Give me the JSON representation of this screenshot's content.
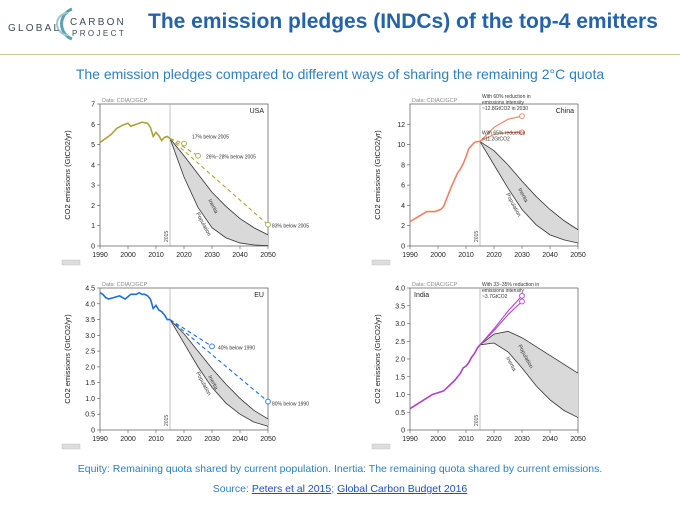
{
  "header": {
    "logo_text": {
      "global": "GLOBAL",
      "carbon": "CARBON",
      "project": "PROJECT"
    },
    "title": "The emission pledges (INDCs) of the top-4 emitters",
    "subtitle": "The emission pledges compared to different ways of sharing the remaining 2°C quota"
  },
  "footer": {
    "line1": "Equity: Remaining quota shared by current population. Inertia: The remaining quota shared by current emissions.",
    "source_prefix": "Source: ",
    "link1": "Peters et al 2015",
    "separator": "; ",
    "link2": "Global Carbon Budget 2016"
  },
  "colors": {
    "title": "#2563a8",
    "usa": "#a8a43c",
    "china": "#f08060",
    "eu": "#1f6fd6",
    "india": "#b040c8",
    "band": "#d9d9d9"
  },
  "chart_data": [
    {
      "id": "usa",
      "type": "line",
      "region": "USA",
      "source": "Data: CDIAC/GCP",
      "ylabel": "CO2 emissions (GtCO2/yr)",
      "xlim": [
        1990,
        2050
      ],
      "ylim": [
        0,
        7
      ],
      "xticks": [
        "1990",
        "2000",
        "2010",
        "2020",
        "2030",
        "2040",
        "2050"
      ],
      "yticks": [
        "0",
        "1",
        "2",
        "3",
        "4",
        "5",
        "6",
        "7"
      ],
      "marker_year": "2015",
      "historical": {
        "x": [
          1990,
          1992,
          1994,
          1996,
          1998,
          2000,
          2001,
          2003,
          2005,
          2007,
          2008,
          2009,
          2010,
          2011,
          2012,
          2013,
          2014,
          2015
        ],
        "y": [
          5.1,
          5.3,
          5.5,
          5.8,
          5.95,
          6.05,
          5.9,
          6.0,
          6.1,
          6.05,
          5.85,
          5.4,
          5.6,
          5.45,
          5.2,
          5.35,
          5.4,
          5.3
        ]
      },
      "pledges": [
        {
          "label": "17% below 2005",
          "x": [
            2015,
            2020
          ],
          "y": [
            5.3,
            5.05
          ]
        },
        {
          "label": "26%−28% below 2005",
          "x": [
            2015,
            2025
          ],
          "y": [
            5.3,
            4.45
          ]
        },
        {
          "label": "83% below 2005",
          "x": [
            2015,
            2050
          ],
          "y": [
            5.3,
            1.05
          ]
        }
      ],
      "band": {
        "x": [
          2015,
          2020,
          2025,
          2030,
          2035,
          2040,
          2045,
          2050
        ],
        "upper": [
          5.3,
          4.45,
          3.55,
          2.65,
          1.95,
          1.35,
          0.9,
          0.55
        ],
        "lower": [
          5.3,
          3.4,
          1.9,
          0.9,
          0.4,
          0.15,
          0.05,
          0.02
        ]
      },
      "band_labels": [
        "Inertia",
        "Population"
      ]
    },
    {
      "id": "china",
      "type": "line",
      "region": "China",
      "source": "Data: CDIAC/GCP",
      "ylabel": "CO2 emissions (GtCO2/yr)",
      "xlim": [
        1990,
        2050
      ],
      "ylim": [
        0,
        14
      ],
      "xticks": [
        "1990",
        "2000",
        "2010",
        "2020",
        "2030",
        "2040",
        "2050"
      ],
      "yticks": [
        "0",
        "2",
        "4",
        "6",
        "8",
        "10",
        "12"
      ],
      "marker_year": "2015",
      "historical": {
        "x": [
          1990,
          1993,
          1996,
          1999,
          2001,
          2002,
          2003,
          2004,
          2005,
          2006,
          2007,
          2008,
          2009,
          2010,
          2011,
          2012,
          2013,
          2014,
          2015
        ],
        "y": [
          2.4,
          2.9,
          3.4,
          3.4,
          3.6,
          3.9,
          4.6,
          5.3,
          6.0,
          6.6,
          7.2,
          7.6,
          8.1,
          8.8,
          9.6,
          9.9,
          10.2,
          10.3,
          10.3
        ]
      },
      "pledges": [
        {
          "label": "With 60% reduction in emissions intensity ~12.8GtCO2 in 2030",
          "x": [
            2015,
            2020,
            2025,
            2030
          ],
          "y": [
            10.3,
            11.7,
            12.5,
            12.8
          ]
        },
        {
          "label": "With 65% reduction ~11.2GtCO2",
          "x": [
            2015,
            2020,
            2025,
            2030
          ],
          "y": [
            10.3,
            11.0,
            11.2,
            11.2
          ]
        }
      ],
      "band": {
        "x": [
          2015,
          2020,
          2025,
          2030,
          2035,
          2040,
          2045,
          2050
        ],
        "upper": [
          10.3,
          9.4,
          8.0,
          6.4,
          4.9,
          3.6,
          2.5,
          1.6
        ],
        "lower": [
          10.3,
          8.0,
          5.7,
          3.6,
          2.1,
          1.1,
          0.6,
          0.3
        ]
      },
      "band_labels": [
        "Inertia",
        "Population"
      ]
    },
    {
      "id": "eu",
      "type": "line",
      "region": "EU",
      "source": "Data: CDIAC/GCP",
      "ylabel": "CO2 emissions (GtCO2/yr)",
      "xlim": [
        1990,
        2050
      ],
      "ylim": [
        0,
        4.5
      ],
      "xticks": [
        "1990",
        "2000",
        "2010",
        "2020",
        "2030",
        "2040",
        "2050"
      ],
      "yticks": [
        "0",
        "0.5",
        "1.0",
        "1.5",
        "2.0",
        "2.5",
        "3.0",
        "3.5",
        "4.0",
        "4.5"
      ],
      "marker_year": "2015",
      "historical": {
        "x": [
          1990,
          1991,
          1992,
          1993,
          1995,
          1997,
          1999,
          2001,
          2003,
          2004,
          2005,
          2006,
          2007,
          2008,
          2009,
          2010,
          2011,
          2012,
          2013,
          2014,
          2015
        ],
        "y": [
          4.35,
          4.3,
          4.2,
          4.15,
          4.2,
          4.25,
          4.15,
          4.3,
          4.3,
          4.35,
          4.3,
          4.3,
          4.25,
          4.15,
          3.85,
          3.95,
          3.8,
          3.75,
          3.65,
          3.5,
          3.5
        ]
      },
      "pledges": [
        {
          "label": "40% below 1990",
          "x": [
            2015,
            2030
          ],
          "y": [
            3.5,
            2.65
          ]
        },
        {
          "label": "80% below 1990",
          "x": [
            2015,
            2050
          ],
          "y": [
            3.5,
            0.9
          ]
        }
      ],
      "band": {
        "x": [
          2015,
          2020,
          2025,
          2030,
          2035,
          2040,
          2045,
          2050
        ],
        "upper": [
          3.5,
          3.05,
          2.5,
          1.95,
          1.45,
          1.0,
          0.62,
          0.35
        ],
        "lower": [
          3.5,
          2.75,
          2.0,
          1.35,
          0.85,
          0.5,
          0.25,
          0.12
        ]
      },
      "band_labels": [
        "Inertia",
        "Population"
      ]
    },
    {
      "id": "india",
      "type": "line",
      "region": "India",
      "source": "Data: CDIAC/GCP",
      "ylabel": "CO2 emissions (GtCO2/yr)",
      "xlim": [
        1990,
        2050
      ],
      "ylim": [
        0,
        4
      ],
      "xticks": [
        "1990",
        "2000",
        "2010",
        "2020",
        "2030",
        "2040",
        "2050"
      ],
      "yticks": [
        "0",
        "0.5",
        "1.0",
        "1.5",
        "2.0",
        "2.5",
        "3.0",
        "3.5",
        "4.0"
      ],
      "marker_year": "2015",
      "historical": {
        "x": [
          1990,
          1992,
          1994,
          1996,
          1998,
          2000,
          2002,
          2004,
          2006,
          2008,
          2009,
          2010,
          2011,
          2012,
          2013,
          2014,
          2015
        ],
        "y": [
          0.6,
          0.7,
          0.8,
          0.9,
          1.0,
          1.05,
          1.1,
          1.25,
          1.4,
          1.6,
          1.75,
          1.8,
          1.9,
          2.05,
          2.15,
          2.3,
          2.4
        ]
      },
      "pledges": [
        {
          "label": "With 33−35% reduction in emissions intensity ~3.7GtCO2",
          "x": [
            2015,
            2020,
            2025,
            2030
          ],
          "y": [
            2.4,
            2.85,
            3.35,
            3.78
          ]
        },
        {
          "label": "",
          "x": [
            2015,
            2020,
            2025,
            2030
          ],
          "y": [
            2.4,
            2.8,
            3.25,
            3.62
          ]
        }
      ],
      "band": {
        "x": [
          2015,
          2020,
          2025,
          2030,
          2035,
          2040,
          2045,
          2050
        ],
        "upper": [
          2.4,
          2.7,
          2.78,
          2.6,
          2.35,
          2.1,
          1.85,
          1.6
        ],
        "lower": [
          2.4,
          2.45,
          2.2,
          1.75,
          1.25,
          0.85,
          0.55,
          0.35
        ]
      },
      "band_labels": [
        "Population",
        "Inertia"
      ]
    }
  ]
}
